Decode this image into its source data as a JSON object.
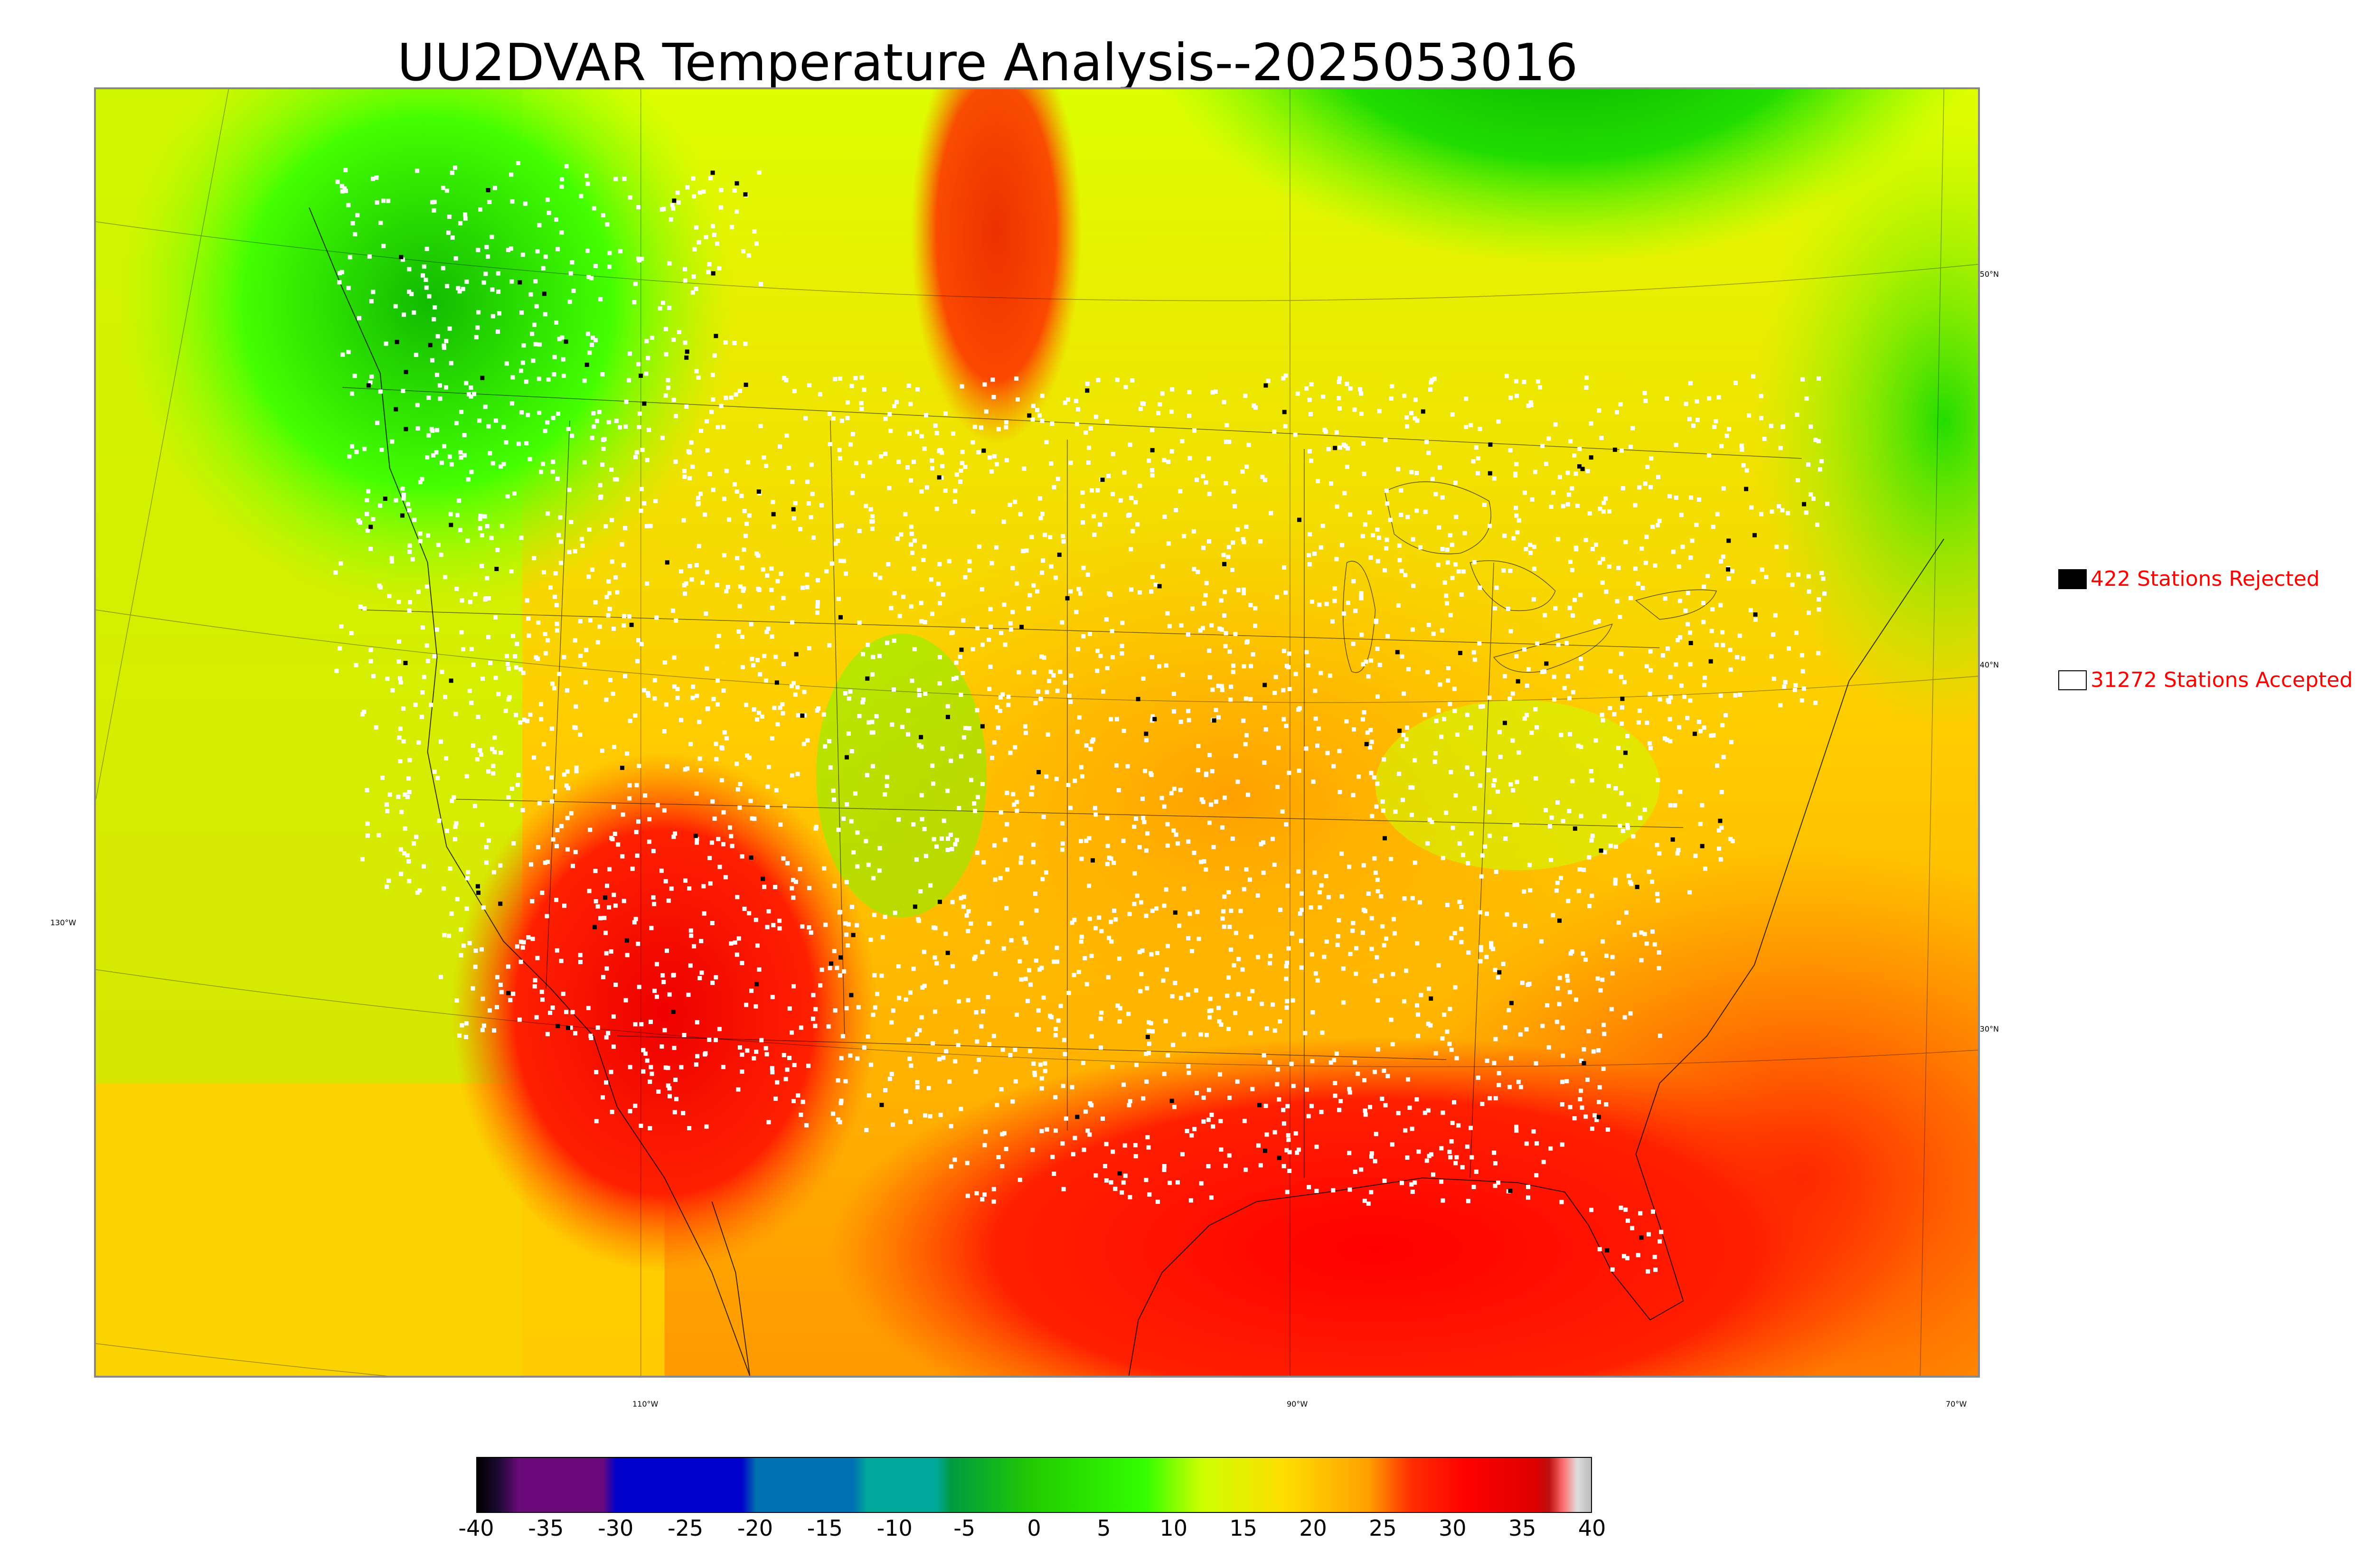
{
  "title": "UU2DVAR Temperature Analysis--2025053016",
  "map": {
    "lat_labels": [
      "50°N",
      "40°N",
      "30°N"
    ],
    "lon_labels": [
      "130°W",
      "110°W",
      "90°W",
      "70°W"
    ]
  },
  "legend": {
    "rejected": {
      "label": "422 Stations Rejected",
      "swatch": "#000000"
    },
    "accepted": {
      "label": "31272 Stations Accepted",
      "swatch": "#ffffff"
    }
  },
  "colorbar": {
    "ticks": [
      "-40",
      "-35",
      "-30",
      "-25",
      "-20",
      "-15",
      "-10",
      "-5",
      "0",
      "5",
      "10",
      "15",
      "20",
      "25",
      "30",
      "35",
      "40"
    ],
    "range": [
      -40,
      40
    ],
    "stops": [
      {
        "v": -40,
        "c": "#000000"
      },
      {
        "v": -38.5,
        "c": "#1a0a2e"
      },
      {
        "v": -37,
        "c": "#6a0a7a"
      },
      {
        "v": -31,
        "c": "#6a0a7a"
      },
      {
        "v": -30,
        "c": "#0000cc"
      },
      {
        "v": -21,
        "c": "#0000cc"
      },
      {
        "v": -20,
        "c": "#0070b0"
      },
      {
        "v": -13,
        "c": "#0070b0"
      },
      {
        "v": -12,
        "c": "#00a89a"
      },
      {
        "v": -7,
        "c": "#00a89a"
      },
      {
        "v": -6,
        "c": "#009a40"
      },
      {
        "v": 0,
        "c": "#22cc00"
      },
      {
        "v": 8,
        "c": "#33ff00"
      },
      {
        "v": 12,
        "c": "#ccff00"
      },
      {
        "v": 18,
        "c": "#ffdd00"
      },
      {
        "v": 24,
        "c": "#ffa000"
      },
      {
        "v": 27,
        "c": "#ff3000"
      },
      {
        "v": 31,
        "c": "#ff0000"
      },
      {
        "v": 36,
        "c": "#dd0000"
      },
      {
        "v": 37,
        "c": "#bb1010"
      },
      {
        "v": 38,
        "c": "#ff7070"
      },
      {
        "v": 39,
        "c": "#dddddd"
      },
      {
        "v": 40,
        "c": "#bbbbbb"
      }
    ]
  }
}
